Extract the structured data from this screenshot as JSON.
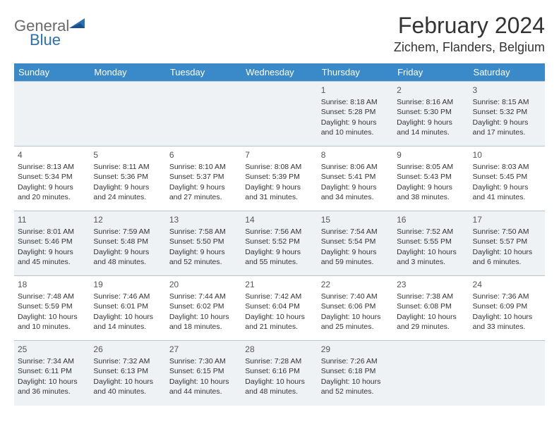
{
  "logo": {
    "word1": "General",
    "word2": "Blue"
  },
  "title": "February 2024",
  "location": "Zichem, Flanders, Belgium",
  "colors": {
    "header_bg": "#3a8ac9",
    "shaded_bg": "#eef2f4",
    "border": "#b8c4cc",
    "logo_gray": "#6a6a6a",
    "logo_blue": "#2d6fb5"
  },
  "day_headers": [
    "Sunday",
    "Monday",
    "Tuesday",
    "Wednesday",
    "Thursday",
    "Friday",
    "Saturday"
  ],
  "weeks": [
    [
      {
        "day": "",
        "sunrise": "",
        "sunset": "",
        "daylight": ""
      },
      {
        "day": "",
        "sunrise": "",
        "sunset": "",
        "daylight": ""
      },
      {
        "day": "",
        "sunrise": "",
        "sunset": "",
        "daylight": ""
      },
      {
        "day": "",
        "sunrise": "",
        "sunset": "",
        "daylight": ""
      },
      {
        "day": "1",
        "sunrise": "Sunrise: 8:18 AM",
        "sunset": "Sunset: 5:28 PM",
        "daylight": "Daylight: 9 hours and 10 minutes."
      },
      {
        "day": "2",
        "sunrise": "Sunrise: 8:16 AM",
        "sunset": "Sunset: 5:30 PM",
        "daylight": "Daylight: 9 hours and 14 minutes."
      },
      {
        "day": "3",
        "sunrise": "Sunrise: 8:15 AM",
        "sunset": "Sunset: 5:32 PM",
        "daylight": "Daylight: 9 hours and 17 minutes."
      }
    ],
    [
      {
        "day": "4",
        "sunrise": "Sunrise: 8:13 AM",
        "sunset": "Sunset: 5:34 PM",
        "daylight": "Daylight: 9 hours and 20 minutes."
      },
      {
        "day": "5",
        "sunrise": "Sunrise: 8:11 AM",
        "sunset": "Sunset: 5:36 PM",
        "daylight": "Daylight: 9 hours and 24 minutes."
      },
      {
        "day": "6",
        "sunrise": "Sunrise: 8:10 AM",
        "sunset": "Sunset: 5:37 PM",
        "daylight": "Daylight: 9 hours and 27 minutes."
      },
      {
        "day": "7",
        "sunrise": "Sunrise: 8:08 AM",
        "sunset": "Sunset: 5:39 PM",
        "daylight": "Daylight: 9 hours and 31 minutes."
      },
      {
        "day": "8",
        "sunrise": "Sunrise: 8:06 AM",
        "sunset": "Sunset: 5:41 PM",
        "daylight": "Daylight: 9 hours and 34 minutes."
      },
      {
        "day": "9",
        "sunrise": "Sunrise: 8:05 AM",
        "sunset": "Sunset: 5:43 PM",
        "daylight": "Daylight: 9 hours and 38 minutes."
      },
      {
        "day": "10",
        "sunrise": "Sunrise: 8:03 AM",
        "sunset": "Sunset: 5:45 PM",
        "daylight": "Daylight: 9 hours and 41 minutes."
      }
    ],
    [
      {
        "day": "11",
        "sunrise": "Sunrise: 8:01 AM",
        "sunset": "Sunset: 5:46 PM",
        "daylight": "Daylight: 9 hours and 45 minutes."
      },
      {
        "day": "12",
        "sunrise": "Sunrise: 7:59 AM",
        "sunset": "Sunset: 5:48 PM",
        "daylight": "Daylight: 9 hours and 48 minutes."
      },
      {
        "day": "13",
        "sunrise": "Sunrise: 7:58 AM",
        "sunset": "Sunset: 5:50 PM",
        "daylight": "Daylight: 9 hours and 52 minutes."
      },
      {
        "day": "14",
        "sunrise": "Sunrise: 7:56 AM",
        "sunset": "Sunset: 5:52 PM",
        "daylight": "Daylight: 9 hours and 55 minutes."
      },
      {
        "day": "15",
        "sunrise": "Sunrise: 7:54 AM",
        "sunset": "Sunset: 5:54 PM",
        "daylight": "Daylight: 9 hours and 59 minutes."
      },
      {
        "day": "16",
        "sunrise": "Sunrise: 7:52 AM",
        "sunset": "Sunset: 5:55 PM",
        "daylight": "Daylight: 10 hours and 3 minutes."
      },
      {
        "day": "17",
        "sunrise": "Sunrise: 7:50 AM",
        "sunset": "Sunset: 5:57 PM",
        "daylight": "Daylight: 10 hours and 6 minutes."
      }
    ],
    [
      {
        "day": "18",
        "sunrise": "Sunrise: 7:48 AM",
        "sunset": "Sunset: 5:59 PM",
        "daylight": "Daylight: 10 hours and 10 minutes."
      },
      {
        "day": "19",
        "sunrise": "Sunrise: 7:46 AM",
        "sunset": "Sunset: 6:01 PM",
        "daylight": "Daylight: 10 hours and 14 minutes."
      },
      {
        "day": "20",
        "sunrise": "Sunrise: 7:44 AM",
        "sunset": "Sunset: 6:02 PM",
        "daylight": "Daylight: 10 hours and 18 minutes."
      },
      {
        "day": "21",
        "sunrise": "Sunrise: 7:42 AM",
        "sunset": "Sunset: 6:04 PM",
        "daylight": "Daylight: 10 hours and 21 minutes."
      },
      {
        "day": "22",
        "sunrise": "Sunrise: 7:40 AM",
        "sunset": "Sunset: 6:06 PM",
        "daylight": "Daylight: 10 hours and 25 minutes."
      },
      {
        "day": "23",
        "sunrise": "Sunrise: 7:38 AM",
        "sunset": "Sunset: 6:08 PM",
        "daylight": "Daylight: 10 hours and 29 minutes."
      },
      {
        "day": "24",
        "sunrise": "Sunrise: 7:36 AM",
        "sunset": "Sunset: 6:09 PM",
        "daylight": "Daylight: 10 hours and 33 minutes."
      }
    ],
    [
      {
        "day": "25",
        "sunrise": "Sunrise: 7:34 AM",
        "sunset": "Sunset: 6:11 PM",
        "daylight": "Daylight: 10 hours and 36 minutes."
      },
      {
        "day": "26",
        "sunrise": "Sunrise: 7:32 AM",
        "sunset": "Sunset: 6:13 PM",
        "daylight": "Daylight: 10 hours and 40 minutes."
      },
      {
        "day": "27",
        "sunrise": "Sunrise: 7:30 AM",
        "sunset": "Sunset: 6:15 PM",
        "daylight": "Daylight: 10 hours and 44 minutes."
      },
      {
        "day": "28",
        "sunrise": "Sunrise: 7:28 AM",
        "sunset": "Sunset: 6:16 PM",
        "daylight": "Daylight: 10 hours and 48 minutes."
      },
      {
        "day": "29",
        "sunrise": "Sunrise: 7:26 AM",
        "sunset": "Sunset: 6:18 PM",
        "daylight": "Daylight: 10 hours and 52 minutes."
      },
      {
        "day": "",
        "sunrise": "",
        "sunset": "",
        "daylight": ""
      },
      {
        "day": "",
        "sunrise": "",
        "sunset": "",
        "daylight": ""
      }
    ]
  ]
}
